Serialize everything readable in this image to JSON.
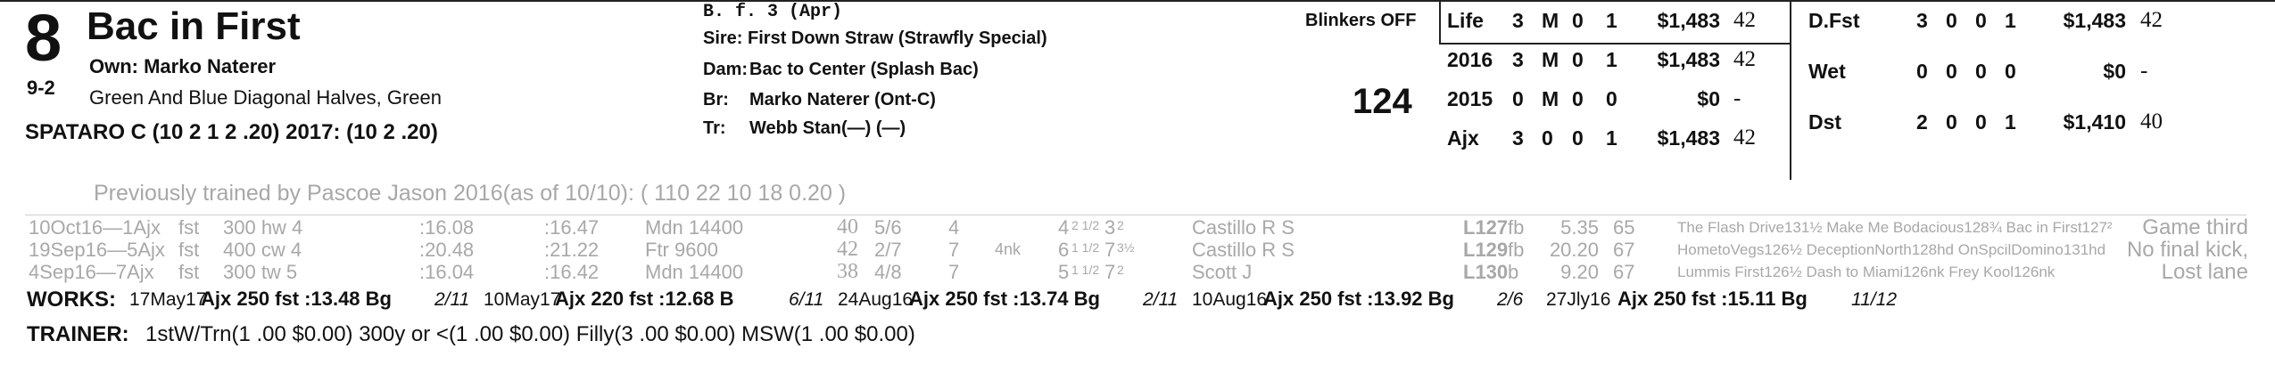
{
  "horse": {
    "program_number": "8",
    "name": "Bac in First",
    "owner": "Own: Marko Naterer",
    "odds": "9-2",
    "silks": "Green And Blue Diagonal Halves, Green",
    "jockey": "SPATARO C (10 2 1 2 .20) 2017: (10 2 .20)"
  },
  "pedigree": {
    "sex_age": "B. f. 3 (Apr)",
    "sire": "Sire: First Down Straw (Strawfly Special)",
    "dam_label": "Dam:",
    "dam": "Bac to Center (Splash Bac)",
    "breeder_label": "Br:",
    "breeder": "Marko Naterer (Ont-C)",
    "trainer_label": "Tr:",
    "trainer": "Webb Stan(—) (—)"
  },
  "blinkers": "Blinkers OFF",
  "weight": "124",
  "record_left": [
    {
      "label": "Life",
      "starts": "3",
      "w": "M",
      "p": "0",
      "s": "1",
      "earn": "$1,483",
      "speed": "42"
    },
    {
      "label": "2016",
      "starts": "3",
      "w": "M",
      "p": "0",
      "s": "1",
      "earn": "$1,483",
      "speed": "42"
    },
    {
      "label": "2015",
      "starts": "0",
      "w": "M",
      "p": "0",
      "s": "0",
      "earn": "$0",
      "speed": "-"
    },
    {
      "label": "Ajx",
      "starts": "3",
      "w": "0",
      "p": "0",
      "s": "1",
      "earn": "$1,483",
      "speed": "42"
    }
  ],
  "record_right": [
    {
      "label": "D.Fst",
      "starts": "3",
      "w": "0",
      "p": "0",
      "s": "1",
      "earn": "$1,483",
      "speed": "42"
    },
    {
      "label": "Wet",
      "starts": "0",
      "w": "0",
      "p": "0",
      "s": "0",
      "earn": "$0",
      "speed": "-"
    },
    {
      "label": "Dst",
      "starts": "2",
      "w": "0",
      "p": "0",
      "s": "1",
      "earn": "$1,410",
      "speed": "40"
    }
  ],
  "previously_trained": "Previously trained by Pascoe Jason 2016(as of 10/10): ( 110 22 10 18 0.20 )",
  "past_performances": [
    {
      "date": "10Oct16—1Ajx",
      "cond": "fst",
      "dist": "300 hw 4",
      "f1": ":16.08",
      "f2": ":16.47",
      "race": "Mdn 14400",
      "speed": "40",
      "pp": "5/6",
      "st": "4",
      "c1": "",
      "c2": "4",
      "c2s": "2",
      "c2n": "1",
      "c2d": "2",
      "fin": "3",
      "fins": "2",
      "jockey": "Castillo R S",
      "med": "L127",
      "eq": "fb",
      "odds": "5.35",
      "fig": "65",
      "comment_line": "The Flash Drive131½ Make Me Bodacious128¾ Bac in First127²",
      "trip": "Game third"
    },
    {
      "date": "19Sep16—5Ajx",
      "cond": "fst",
      "dist": "400 cw 4",
      "f1": ":20.48",
      "f2": ":21.22",
      "race": "Ftr 9600",
      "speed": "42",
      "pp": "2/7",
      "st": "7",
      "c1": "4nk",
      "c2": "6",
      "c2s": "1",
      "c2n": "1",
      "c2d": "2",
      "fin": "7",
      "fins": "3½",
      "jockey": "Castillo R S",
      "med": "L129",
      "eq": "fb",
      "odds": "20.20",
      "fig": "67",
      "comment_line": "HometoVegs126½ DeceptionNorth128hd OnSpcilDomino131hd",
      "trip": "No final kick,"
    },
    {
      "date": "4Sep16—7Ajx",
      "cond": "fst",
      "dist": "300 tw 5",
      "f1": ":16.04",
      "f2": ":16.42",
      "race": "Mdn 14400",
      "speed": "38",
      "pp": "4/8",
      "st": "7",
      "c1": "",
      "c2": "5",
      "c2s": "1",
      "c2n": "1",
      "c2d": "2",
      "fin": "7",
      "fins": "2",
      "jockey": "Scott J",
      "med": "L130",
      "eq": "b",
      "odds": "9.20",
      "fig": "67",
      "comment_line": "Lummis First126½ Dash to Miami126nk Frey Kool126nk",
      "trip": "Lost lane"
    }
  ],
  "works_label": "WORKS:",
  "works": [
    {
      "date": "17May17",
      "track": "Ajx",
      "dist": "250",
      "cond": "fst",
      "time": ":13.48",
      "grade": "Bg",
      "rank": "2/11"
    },
    {
      "date": "10May17",
      "track": "Ajx",
      "dist": "220",
      "cond": "fst",
      "time": ":12.68",
      "grade": "B",
      "rank": "6/11"
    },
    {
      "date": "24Aug16",
      "track": "Ajx",
      "dist": "250",
      "cond": "fst",
      "time": ":13.74",
      "grade": "Bg",
      "rank": "2/11"
    },
    {
      "date": "10Aug16",
      "track": "Ajx",
      "dist": "250",
      "cond": "fst",
      "time": ":13.92",
      "grade": "Bg",
      "rank": "2/6"
    },
    {
      "date": "27Jly16",
      "track": "Ajx",
      "dist": "250",
      "cond": "fst",
      "time": ":15.11",
      "grade": "Bg",
      "rank": "11/12"
    }
  ],
  "trainer_label": "TRAINER:",
  "trainer_stats": "1stW/Trn(1 .00 $0.00) 300y or <(1 .00 $0.00) Filly(3 .00 $0.00) MSW(1 .00 $0.00)"
}
